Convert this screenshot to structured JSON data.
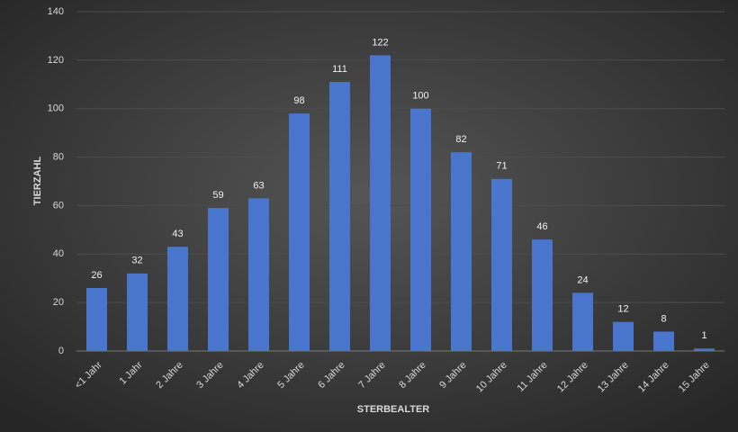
{
  "chart_data": {
    "type": "bar",
    "x_label": "STERBEALTER",
    "y_label": "TIERZAHL",
    "categories": [
      "<1 Jahr",
      "1 Jahr",
      "2 Jahre",
      "3 Jahre",
      "4 Jahre",
      "5 Jahre",
      "6 Jahre",
      "7 Jahre",
      "8 Jahre",
      "9 Jahre",
      "10 Jahre",
      "11 Jahre",
      "12 Jahre",
      "13 Jahre",
      "14 Jahre",
      "15 Jahre"
    ],
    "values": [
      26,
      32,
      43,
      59,
      63,
      98,
      111,
      122,
      100,
      82,
      71,
      46,
      24,
      12,
      8,
      1
    ],
    "color": "#4a75cc",
    "ylim": [
      0,
      140
    ],
    "yticks": [
      0,
      20,
      40,
      60,
      80,
      100,
      120,
      140
    ],
    "grid": true
  }
}
